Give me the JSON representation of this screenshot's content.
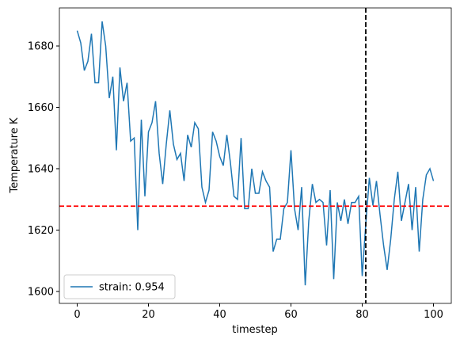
{
  "chart_data": {
    "type": "line",
    "xlabel": "timestep",
    "ylabel": "Temperature K",
    "x": [
      0,
      1,
      2,
      3,
      4,
      5,
      6,
      7,
      8,
      9,
      10,
      11,
      12,
      13,
      14,
      15,
      16,
      17,
      18,
      19,
      20,
      21,
      22,
      23,
      24,
      25,
      26,
      27,
      28,
      29,
      30,
      31,
      32,
      33,
      34,
      35,
      36,
      37,
      38,
      39,
      40,
      41,
      42,
      43,
      44,
      45,
      46,
      47,
      48,
      49,
      50,
      51,
      52,
      53,
      54,
      55,
      56,
      57,
      58,
      59,
      60,
      61,
      62,
      63,
      64,
      65,
      66,
      67,
      68,
      69,
      70,
      71,
      72,
      73,
      74,
      75,
      76,
      77,
      78,
      79,
      80,
      81,
      82,
      83,
      84,
      85,
      86,
      87,
      88,
      89,
      90,
      91,
      92,
      93,
      94,
      95,
      96,
      97,
      98,
      99,
      100
    ],
    "series": [
      {
        "name": "strain: 0.954",
        "color": "#1f77b4",
        "values": [
          1685,
          1681,
          1672,
          1675,
          1684,
          1668,
          1668,
          1688,
          1680,
          1663,
          1670,
          1646,
          1673,
          1662,
          1668,
          1649,
          1650,
          1620,
          1656,
          1631,
          1652,
          1655,
          1662,
          1645,
          1635,
          1648,
          1659,
          1648,
          1643,
          1645,
          1636,
          1651,
          1647,
          1655,
          1653,
          1634,
          1629,
          1633,
          1652,
          1649,
          1644,
          1641,
          1651,
          1642,
          1631,
          1630,
          1650,
          1627,
          1627,
          1640,
          1632,
          1632,
          1639,
          1636,
          1634,
          1613,
          1617,
          1617,
          1627,
          1629,
          1646,
          1627,
          1620,
          1634,
          1602,
          1623,
          1635,
          1629,
          1630,
          1629,
          1615,
          1633,
          1604,
          1629,
          1623,
          1630,
          1622,
          1629,
          1629,
          1631,
          1605,
          1622,
          1637,
          1628,
          1636,
          1625,
          1615,
          1607,
          1617,
          1630,
          1639,
          1623,
          1629,
          1635,
          1620,
          1634,
          1613,
          1630,
          1638,
          1640,
          1636
        ]
      }
    ],
    "reference_lines": [
      {
        "axis": "y",
        "value": 1627.8,
        "color": "#ff0000"
      },
      {
        "axis": "x",
        "value": 81,
        "color": "#000000"
      }
    ],
    "xlim": [
      -5,
      105
    ],
    "xticks": [
      0,
      20,
      40,
      60,
      80,
      100
    ],
    "ylim": [
      1596.1,
      1692.4
    ],
    "yticks": [
      1600,
      1620,
      1640,
      1660,
      1680
    ],
    "legend": "lower left"
  }
}
